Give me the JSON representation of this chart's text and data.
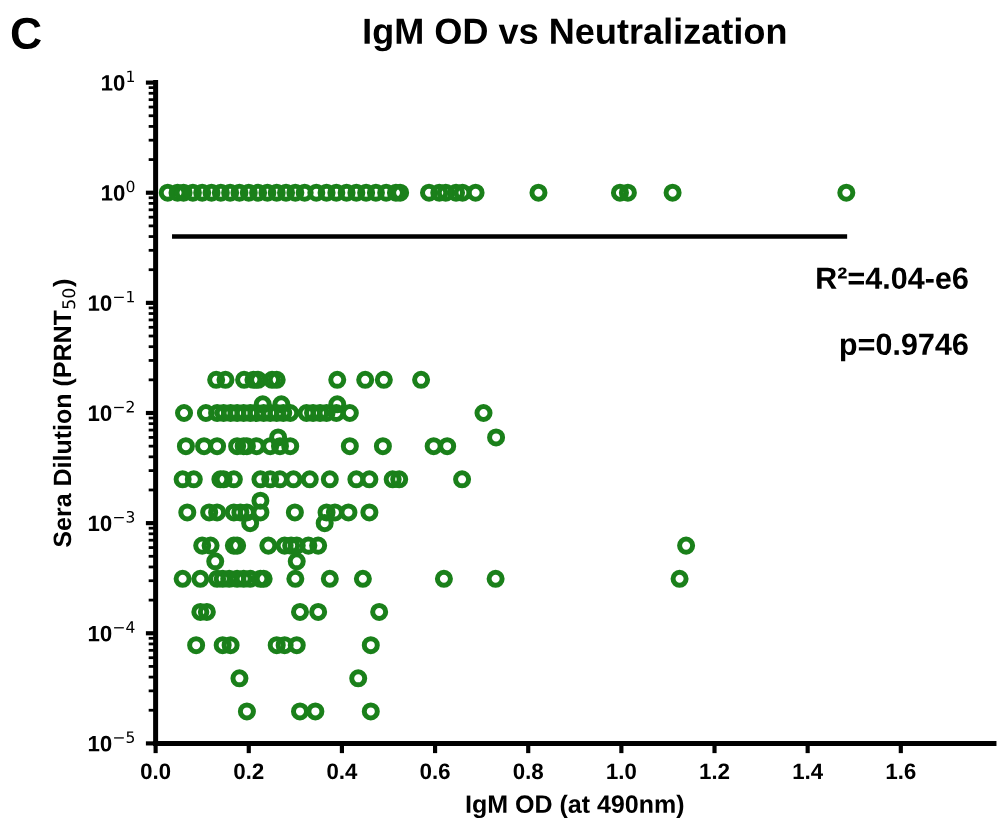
{
  "chart_data": {
    "type": "scatter",
    "title": "IgM OD vs Neutralization",
    "xlabel": "IgM OD (at 490nm)",
    "ylabel": "Sera Dilution (PRNT$_{50}$)",
    "annotations": [
      "C",
      "R²=4.04-e6",
      "p=0.9746"
    ],
    "log": "y",
    "xlim": [
      0,
      1.8
    ],
    "xticks": [
      {
        "value": 0,
        "label": "0.0"
      },
      {
        "value": 0.2,
        "label": "0.2"
      },
      {
        "value": 0.4,
        "label": "0.4"
      },
      {
        "value": 0.6,
        "label": "0.6"
      },
      {
        "value": 0.8,
        "label": "0.8"
      },
      {
        "value": 1.0,
        "label": "1.0"
      },
      {
        "value": 1.2,
        "label": "1.2"
      },
      {
        "value": 1.4,
        "label": "1.4"
      },
      {
        "value": 1.6,
        "label": "1.6"
      }
    ],
    "ylim": [
      1e-05,
      10
    ],
    "yticks": [
      {
        "value": 1e-05,
        "label": "10$^{−5}$"
      },
      {
        "value": 0.0001,
        "label": "10$^{−4}$"
      },
      {
        "value": 0.001,
        "label": "10$^{−3}$"
      },
      {
        "value": 0.01,
        "label": "10$^{−2}$"
      },
      {
        "value": 0.1,
        "label": "10$^{−1}$"
      },
      {
        "value": 1,
        "label": "10$^{0}$"
      },
      {
        "value": 10,
        "label": "10$^{1}$"
      }
    ],
    "grid": false,
    "legend": false,
    "series": [
      {
        "color": "#1a801a",
        "marker": "circle",
        "x": [
          0.026,
          0.047,
          0.06,
          0.08,
          0.1,
          0.12,
          0.14,
          0.16,
          0.18,
          0.2,
          0.22,
          0.24,
          0.26,
          0.28,
          0.3,
          0.32,
          0.345,
          0.367,
          0.388,
          0.41,
          0.431,
          0.452,
          0.473,
          0.495,
          0.516,
          0.525,
          0.587,
          0.609,
          0.623,
          0.645,
          0.659,
          0.687,
          0.822,
          0.997,
          1.014,
          1.11,
          1.483,
          0.13,
          0.15,
          0.19,
          0.21,
          0.22,
          0.25,
          0.26,
          0.39,
          0.45,
          0.49,
          0.57,
          0.23,
          0.27,
          0.39,
          0.061,
          0.108,
          0.132,
          0.146,
          0.161,
          0.175,
          0.189,
          0.203,
          0.217,
          0.232,
          0.246,
          0.26,
          0.274,
          0.289,
          0.324,
          0.338,
          0.353,
          0.367,
          0.388,
          0.417,
          0.704,
          0.263,
          0.731,
          0.065,
          0.104,
          0.132,
          0.175,
          0.189,
          0.196,
          0.217,
          0.246,
          0.267,
          0.289,
          0.417,
          0.488,
          0.597,
          0.626,
          0.058,
          0.082,
          0.139,
          0.146,
          0.168,
          0.225,
          0.246,
          0.267,
          0.296,
          0.331,
          0.374,
          0.431,
          0.459,
          0.509,
          0.523,
          0.658,
          0.225,
          0.068,
          0.115,
          0.132,
          0.168,
          0.182,
          0.196,
          0.225,
          0.299,
          0.367,
          0.385,
          0.414,
          0.459,
          0.203,
          0.363,
          0.1,
          0.118,
          0.168,
          0.175,
          0.242,
          0.277,
          0.291,
          0.303,
          0.328,
          0.349,
          1.139,
          0.128,
          0.303,
          0.058,
          0.096,
          0.132,
          0.144,
          0.158,
          0.175,
          0.189,
          0.203,
          0.225,
          0.232,
          0.3,
          0.374,
          0.445,
          0.619,
          0.73,
          1.125,
          0.096,
          0.11,
          0.31,
          0.349,
          0.48,
          0.087,
          0.144,
          0.161,
          0.26,
          0.277,
          0.303,
          0.462,
          0.18,
          0.435,
          0.196,
          0.31,
          0.343,
          0.462
        ],
        "values": [
          1,
          1,
          1,
          1,
          1,
          1,
          1,
          1,
          1,
          1,
          1,
          1,
          1,
          1,
          1,
          1,
          1,
          1,
          1,
          1,
          1,
          1,
          1,
          1,
          1,
          1,
          1,
          1,
          1,
          1,
          1,
          1,
          1,
          1,
          1,
          1,
          1,
          0.02,
          0.02,
          0.02,
          0.02,
          0.02,
          0.02,
          0.02,
          0.02,
          0.02,
          0.02,
          0.02,
          0.012,
          0.012,
          0.012,
          0.01,
          0.01,
          0.01,
          0.01,
          0.01,
          0.01,
          0.01,
          0.01,
          0.01,
          0.01,
          0.01,
          0.01,
          0.01,
          0.01,
          0.01,
          0.01,
          0.01,
          0.01,
          0.01,
          0.01,
          0.01,
          0.006,
          0.006,
          0.005,
          0.005,
          0.005,
          0.005,
          0.005,
          0.005,
          0.005,
          0.005,
          0.005,
          0.005,
          0.005,
          0.005,
          0.005,
          0.005,
          0.0025,
          0.0025,
          0.0025,
          0.0025,
          0.0025,
          0.0025,
          0.0025,
          0.0025,
          0.0025,
          0.0025,
          0.0025,
          0.0025,
          0.0025,
          0.0025,
          0.0025,
          0.0025,
          0.0016,
          0.00125,
          0.00125,
          0.00125,
          0.00125,
          0.00125,
          0.00125,
          0.00125,
          0.00125,
          0.00125,
          0.00125,
          0.00125,
          0.00125,
          0.001,
          0.001,
          0.000625,
          0.000625,
          0.000625,
          0.000625,
          0.000625,
          0.000625,
          0.000625,
          0.000625,
          0.000625,
          0.000625,
          0.000625,
          0.00045,
          0.00045,
          0.0003125,
          0.0003125,
          0.0003125,
          0.0003125,
          0.0003125,
          0.0003125,
          0.0003125,
          0.0003125,
          0.0003125,
          0.0003125,
          0.0003125,
          0.0003125,
          0.0003125,
          0.0003125,
          0.0003125,
          0.0003125,
          0.000156,
          0.000156,
          0.000156,
          0.000156,
          0.000156,
          7.8e-05,
          7.8e-05,
          7.8e-05,
          7.8e-05,
          7.8e-05,
          7.8e-05,
          7.8e-05,
          3.9e-05,
          3.9e-05,
          1.95e-05,
          1.95e-05,
          1.95e-05,
          1.95e-05
        ]
      },
      {
        "type": "line",
        "color": "#000000",
        "x": [
          0.04,
          1.48
        ],
        "values": [
          0.4,
          0.4
        ]
      }
    ]
  }
}
